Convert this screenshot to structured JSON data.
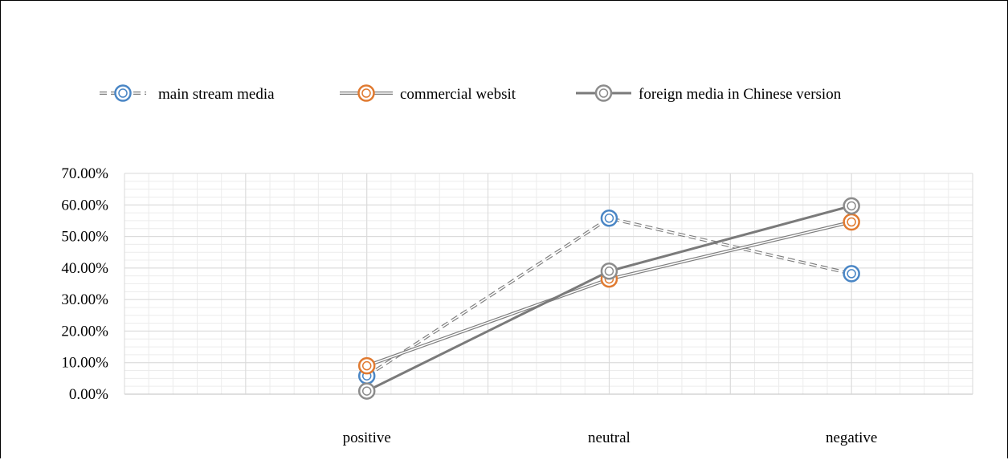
{
  "chart_data": {
    "type": "line",
    "title": "",
    "xlabel": "",
    "ylabel": "",
    "categories": [
      "positive",
      "neutral",
      "negative"
    ],
    "ylim": [
      0,
      0.7
    ],
    "y_ticks": [
      "0.00%",
      "10.00%",
      "20.00%",
      "30.00%",
      "40.00%",
      "50.00%",
      "60.00%",
      "70.00%"
    ],
    "grid": true,
    "legend_position": "top",
    "series": [
      {
        "name": "main stream media",
        "values": [
          0.058,
          0.558,
          0.382
        ],
        "color": "#4a86c5",
        "line_style": "double-dashed",
        "marker": "concentric-circle"
      },
      {
        "name": "commercial websit",
        "values": [
          0.09,
          0.365,
          0.546
        ],
        "color": "#e07a30",
        "line_style": "double",
        "marker": "concentric-circle"
      },
      {
        "name": "foreign media in Chinese version",
        "values": [
          0.01,
          0.39,
          0.597
        ],
        "color": "#8c8c8c",
        "line_style": "solid",
        "marker": "concentric-circle"
      }
    ]
  }
}
